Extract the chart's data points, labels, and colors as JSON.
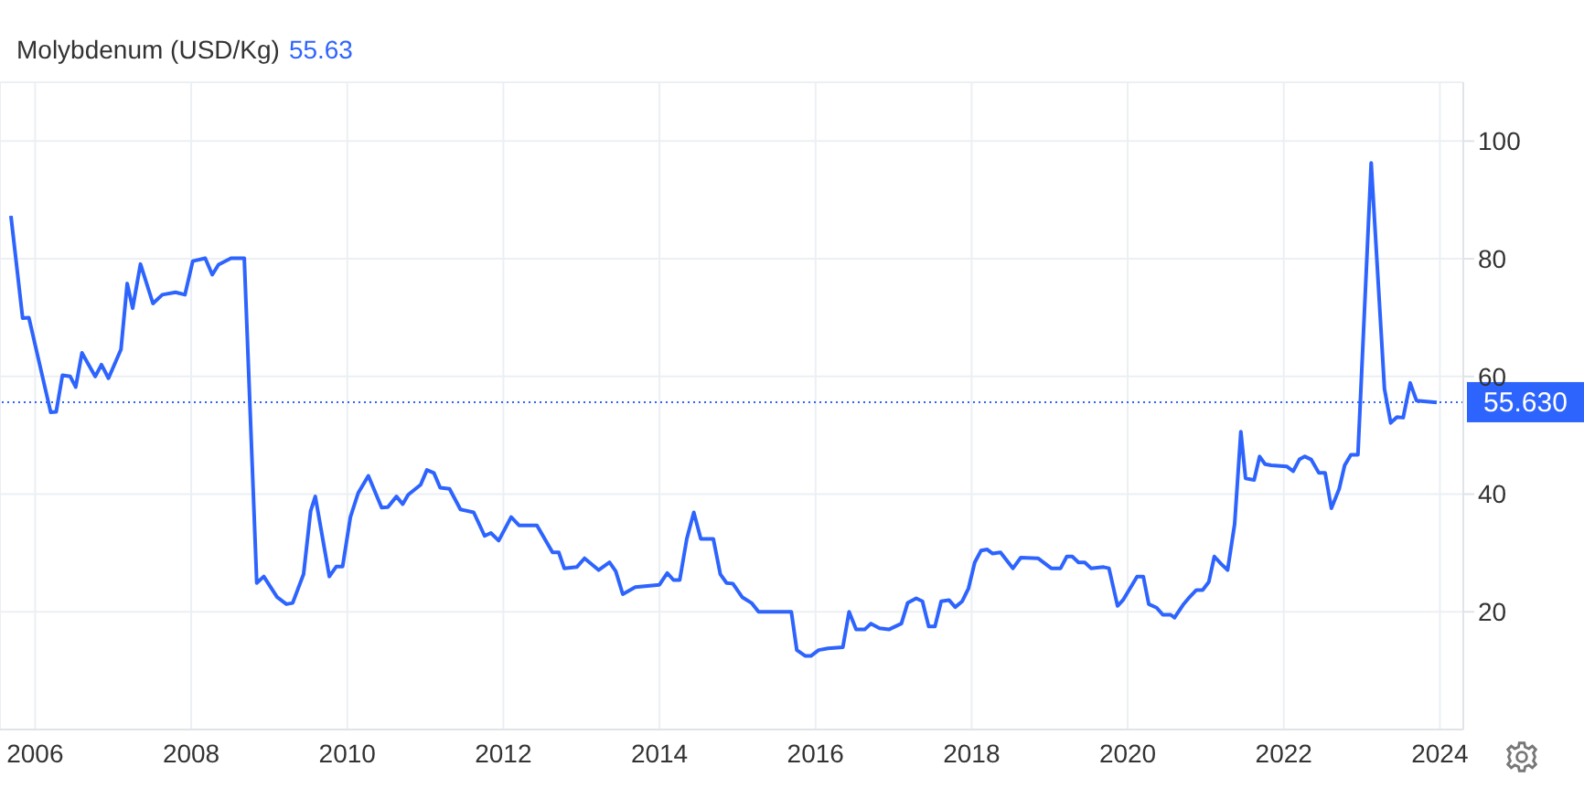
{
  "chart_data": {
    "type": "line",
    "title": "Molybdenum (USD/Kg)",
    "subtitle": "55.63",
    "x": [
      2005.69,
      2005.84,
      2005.92,
      2006.2,
      2006.27,
      2006.35,
      2006.45,
      2006.52,
      2006.6,
      2006.77,
      2006.85,
      2006.94,
      2007.1,
      2007.18,
      2007.25,
      2007.35,
      2007.51,
      2007.63,
      2007.8,
      2007.92,
      2008.02,
      2008.18,
      2008.27,
      2008.35,
      2008.51,
      2008.68,
      2008.84,
      2008.93,
      2009.1,
      2009.22,
      2009.3,
      2009.44,
      2009.53,
      2009.59,
      2009.77,
      2009.86,
      2009.94,
      2010.04,
      2010.14,
      2010.27,
      2010.44,
      2010.52,
      2010.63,
      2010.71,
      2010.78,
      2010.94,
      2011.02,
      2011.11,
      2011.19,
      2011.31,
      2011.45,
      2011.62,
      2011.76,
      2011.84,
      2011.94,
      2012.1,
      2012.2,
      2012.43,
      2012.63,
      2012.71,
      2012.78,
      2012.94,
      2013.04,
      2013.22,
      2013.36,
      2013.44,
      2013.53,
      2013.69,
      2014.0,
      2014.1,
      2014.18,
      2014.26,
      2014.35,
      2014.44,
      2014.53,
      2014.69,
      2014.78,
      2014.86,
      2014.94,
      2015.06,
      2015.18,
      2015.27,
      2015.69,
      2015.76,
      2015.87,
      2015.94,
      2016.04,
      2016.16,
      2016.35,
      2016.43,
      2016.52,
      2016.63,
      2016.71,
      2016.82,
      2016.94,
      2017.1,
      2017.18,
      2017.29,
      2017.37,
      2017.45,
      2017.53,
      2017.61,
      2017.71,
      2017.79,
      2017.88,
      2017.96,
      2018.04,
      2018.12,
      2018.2,
      2018.27,
      2018.37,
      2018.53,
      2018.63,
      2018.85,
      2019.02,
      2019.14,
      2019.22,
      2019.29,
      2019.37,
      2019.45,
      2019.53,
      2019.69,
      2019.76,
      2019.87,
      2019.94,
      2020.12,
      2020.2,
      2020.27,
      2020.37,
      2020.45,
      2020.55,
      2020.6,
      2020.71,
      2020.78,
      2020.88,
      2020.96,
      2021.04,
      2021.11,
      2021.2,
      2021.28,
      2021.37,
      2021.45,
      2021.51,
      2021.62,
      2021.69,
      2021.76,
      2021.84,
      2022.04,
      2022.12,
      2022.2,
      2022.27,
      2022.35,
      2022.45,
      2022.53,
      2022.61,
      2022.71,
      2022.78,
      2022.86,
      2022.95,
      2023.12,
      2023.29,
      2023.37,
      2023.45,
      2023.53,
      2023.62,
      2023.7,
      2023.96
    ],
    "series": [
      {
        "color": "#2e64fe",
        "values": [
          87.3,
          69.9,
          70,
          53.9,
          54,
          60.2,
          60,
          58.2,
          64,
          60,
          62,
          59.7,
          64.6,
          75.8,
          71.6,
          79.1,
          72.4,
          73.9,
          74.3,
          73.9,
          79.6,
          80.1,
          77.3,
          79,
          80.1,
          80.1,
          24.9,
          26,
          22.5,
          21.3,
          21.5,
          26.4,
          37.1,
          39.6,
          26,
          27.7,
          27.7,
          36.1,
          40.2,
          43.1,
          37.7,
          37.8,
          39.6,
          38.3,
          39.9,
          41.6,
          44.1,
          43.6,
          41.1,
          40.9,
          37.4,
          36.9,
          32.9,
          33.4,
          32.1,
          36.1,
          34.7,
          34.7,
          30.1,
          30.1,
          27.4,
          27.6,
          29.1,
          27.1,
          28.4,
          26.9,
          23,
          24.2,
          24.6,
          26.6,
          25.4,
          25.4,
          32.4,
          36.9,
          32.4,
          32.4,
          26.4,
          24.9,
          24.8,
          22.5,
          21.5,
          20,
          20,
          13.5,
          12.5,
          12.5,
          13.5,
          13.8,
          14,
          20,
          17,
          17,
          18,
          17.2,
          17,
          18,
          21.5,
          22.3,
          21.8,
          17.5,
          17.5,
          21.8,
          22,
          20.8,
          21.8,
          24,
          28.4,
          30.4,
          30.6,
          29.9,
          30.1,
          27.4,
          29.2,
          29.1,
          27.4,
          27.4,
          29.4,
          29.4,
          28.4,
          28.4,
          27.4,
          27.6,
          27.4,
          21,
          22,
          26,
          26,
          21.3,
          20.7,
          19.5,
          19.5,
          19,
          21.2,
          22.3,
          23.7,
          23.7,
          25.1,
          29.4,
          28.1,
          27.1,
          34.9,
          50.6,
          42.7,
          42.4,
          46.4,
          45.1,
          44.9,
          44.7,
          43.9,
          45.9,
          46.4,
          45.9,
          43.6,
          43.6,
          37.6,
          40.9,
          44.9,
          46.7,
          46.7,
          96.3,
          57.9,
          52.1,
          53.1,
          53,
          58.9,
          55.9,
          55.6
        ]
      }
    ],
    "xlim": [
      2005.55,
      2024.3
    ],
    "xticks": [
      2006,
      2008,
      2010,
      2012,
      2014,
      2016,
      2018,
      2020,
      2022,
      2024
    ],
    "ylim": [
      0,
      110
    ],
    "yticks": [
      20,
      40,
      60,
      80,
      100
    ],
    "grid": true,
    "marker": "none",
    "line_style": "solid",
    "ref_lines": [
      {
        "axis": "y",
        "value": 55.63,
        "label": "55.630",
        "color": "#2e64fe",
        "line_style": "dotted"
      }
    ]
  }
}
